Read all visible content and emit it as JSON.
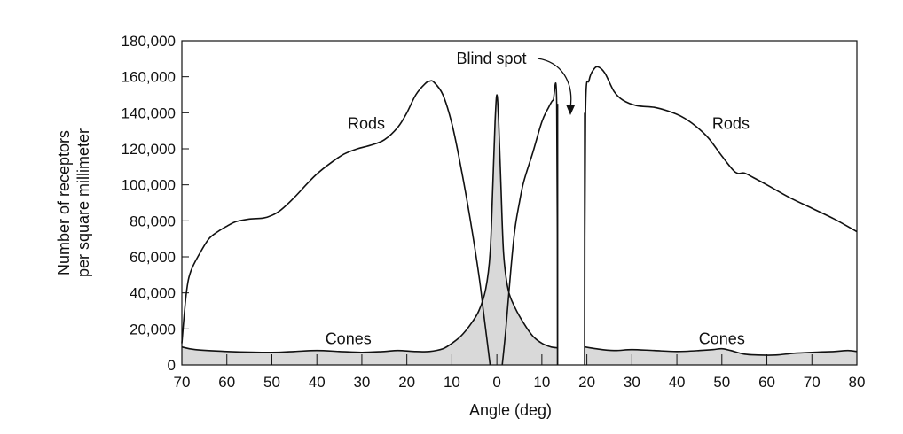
{
  "chart_data": {
    "type": "area",
    "xlabel": "Angle (deg)",
    "ylabel": [
      "Number of receptors",
      "per square millimeter"
    ],
    "ylim": [
      0,
      180000
    ],
    "xlim": [
      -70,
      80
    ],
    "x_ticks": [
      {
        "value": -70,
        "label": "70"
      },
      {
        "value": -60,
        "label": "60"
      },
      {
        "value": -50,
        "label": "50"
      },
      {
        "value": -40,
        "label": "40"
      },
      {
        "value": -30,
        "label": "30"
      },
      {
        "value": -20,
        "label": "20"
      },
      {
        "value": -10,
        "label": "10"
      },
      {
        "value": 0,
        "label": "0"
      },
      {
        "value": 10,
        "label": "10"
      },
      {
        "value": 20,
        "label": "20"
      },
      {
        "value": 30,
        "label": "30"
      },
      {
        "value": 40,
        "label": "40"
      },
      {
        "value": 50,
        "label": "50"
      },
      {
        "value": 60,
        "label": "60"
      },
      {
        "value": 70,
        "label": "70"
      },
      {
        "value": 80,
        "label": "80"
      }
    ],
    "y_ticks": [
      {
        "value": 0,
        "label": "0"
      },
      {
        "value": 20000,
        "label": "20,000"
      },
      {
        "value": 40000,
        "label": "40,000"
      },
      {
        "value": 60000,
        "label": "60,000"
      },
      {
        "value": 80000,
        "label": "80,000"
      },
      {
        "value": 100000,
        "label": "100,000"
      },
      {
        "value": 120000,
        "label": "120,000"
      },
      {
        "value": 140000,
        "label": "140,000"
      },
      {
        "value": 160000,
        "label": "160,000"
      },
      {
        "value": 180000,
        "label": "180,000"
      }
    ],
    "grid": false,
    "blind_spot": {
      "label": "Blind spot",
      "range": [
        13.5,
        19.5
      ]
    },
    "series": [
      {
        "name": "Rods",
        "segments": [
          [
            [
              -70,
              12000
            ],
            [
              -69,
              40000
            ],
            [
              -68,
              52000
            ],
            [
              -66,
              62000
            ],
            [
              -64,
              70000
            ],
            [
              -62,
              74000
            ],
            [
              -60,
              77000
            ],
            [
              -58,
              79500
            ],
            [
              -55,
              81000
            ],
            [
              -52,
              81500
            ],
            [
              -50,
              83000
            ],
            [
              -48,
              86000
            ],
            [
              -45,
              93000
            ],
            [
              -42,
              101000
            ],
            [
              -40,
              106000
            ],
            [
              -37,
              112000
            ],
            [
              -34,
              117000
            ],
            [
              -31,
              120000
            ],
            [
              -28,
              122000
            ],
            [
              -25,
              125000
            ],
            [
              -22,
              132000
            ],
            [
              -20,
              140000
            ],
            [
              -18,
              150000
            ],
            [
              -16,
              156000
            ],
            [
              -15,
              157500
            ],
            [
              -14,
              157000
            ],
            [
              -12,
              150000
            ],
            [
              -10,
              134000
            ],
            [
              -8,
              110000
            ],
            [
              -6,
              82000
            ],
            [
              -4,
              50000
            ],
            [
              -3,
              30000
            ],
            [
              -2,
              10000
            ],
            [
              -1.5,
              0
            ]
          ],
          [
            [
              1.2,
              0
            ],
            [
              2,
              20000
            ],
            [
              3,
              50000
            ],
            [
              4,
              75000
            ],
            [
              5,
              90000
            ],
            [
              6,
              102000
            ],
            [
              8,
              118000
            ],
            [
              10,
              135000
            ],
            [
              11.5,
              143000
            ],
            [
              12.5,
              147000
            ],
            [
              13.3,
              145000
            ],
            [
              13.5,
              0
            ]
          ],
          [
            [
              19.5,
              0
            ],
            [
              19.7,
              140000
            ],
            [
              20.5,
              158000
            ],
            [
              21.5,
              164000
            ],
            [
              22.5,
              165500
            ],
            [
              24,
              162000
            ],
            [
              26,
              152000
            ],
            [
              28,
              147000
            ],
            [
              31,
              144000
            ],
            [
              35,
              143000
            ],
            [
              38,
              141000
            ],
            [
              41,
              138000
            ],
            [
              44,
              133000
            ],
            [
              47,
              126000
            ],
            [
              50,
              116000
            ],
            [
              53,
              107000
            ],
            [
              55,
              106500
            ],
            [
              57,
              104000
            ],
            [
              60,
              100000
            ],
            [
              65,
              93000
            ],
            [
              70,
              87000
            ],
            [
              75,
              81000
            ],
            [
              80,
              74000
            ]
          ]
        ]
      },
      {
        "name": "Cones",
        "segments": [
          [
            [
              -70,
              10000
            ],
            [
              -67,
              8500
            ],
            [
              -60,
              7500
            ],
            [
              -50,
              7000
            ],
            [
              -45,
              7500
            ],
            [
              -40,
              8000
            ],
            [
              -35,
              7500
            ],
            [
              -30,
              7000
            ],
            [
              -25,
              7500
            ],
            [
              -22,
              8000
            ],
            [
              -18,
              7500
            ],
            [
              -15,
              7500
            ],
            [
              -12,
              9000
            ],
            [
              -10,
              12000
            ],
            [
              -8,
              16000
            ],
            [
              -6,
              22000
            ],
            [
              -4,
              30000
            ],
            [
              -2.5,
              42000
            ],
            [
              -1.5,
              62000
            ],
            [
              -0.9,
              100000
            ],
            [
              -0.4,
              135000
            ],
            [
              0,
              150000
            ],
            [
              0.4,
              135000
            ],
            [
              0.9,
              100000
            ],
            [
              1.5,
              62000
            ],
            [
              2.5,
              42000
            ],
            [
              4,
              32000
            ],
            [
              6,
              23000
            ],
            [
              8,
              16000
            ],
            [
              10,
              12000
            ],
            [
              12,
              10000
            ],
            [
              13.5,
              9500
            ]
          ],
          [
            [
              19.5,
              10000
            ],
            [
              22,
              9000
            ],
            [
              26,
              8000
            ],
            [
              30,
              8500
            ],
            [
              35,
              8000
            ],
            [
              40,
              7500
            ],
            [
              45,
              8000
            ],
            [
              48,
              8500
            ],
            [
              50,
              9000
            ],
            [
              52,
              8000
            ],
            [
              55,
              6000
            ],
            [
              58,
              5500
            ],
            [
              62,
              5500
            ],
            [
              66,
              6500
            ],
            [
              70,
              7000
            ],
            [
              75,
              7500
            ],
            [
              78,
              8000
            ],
            [
              80,
              7500
            ]
          ]
        ]
      }
    ],
    "annotations": [
      {
        "text": "Rods",
        "x": -29,
        "y": 131000
      },
      {
        "text": "Rods",
        "x": 52,
        "y": 131000
      },
      {
        "text": "Cones",
        "x": -33,
        "y": 11500
      },
      {
        "text": "Cones",
        "x": 50,
        "y": 11500
      }
    ]
  }
}
